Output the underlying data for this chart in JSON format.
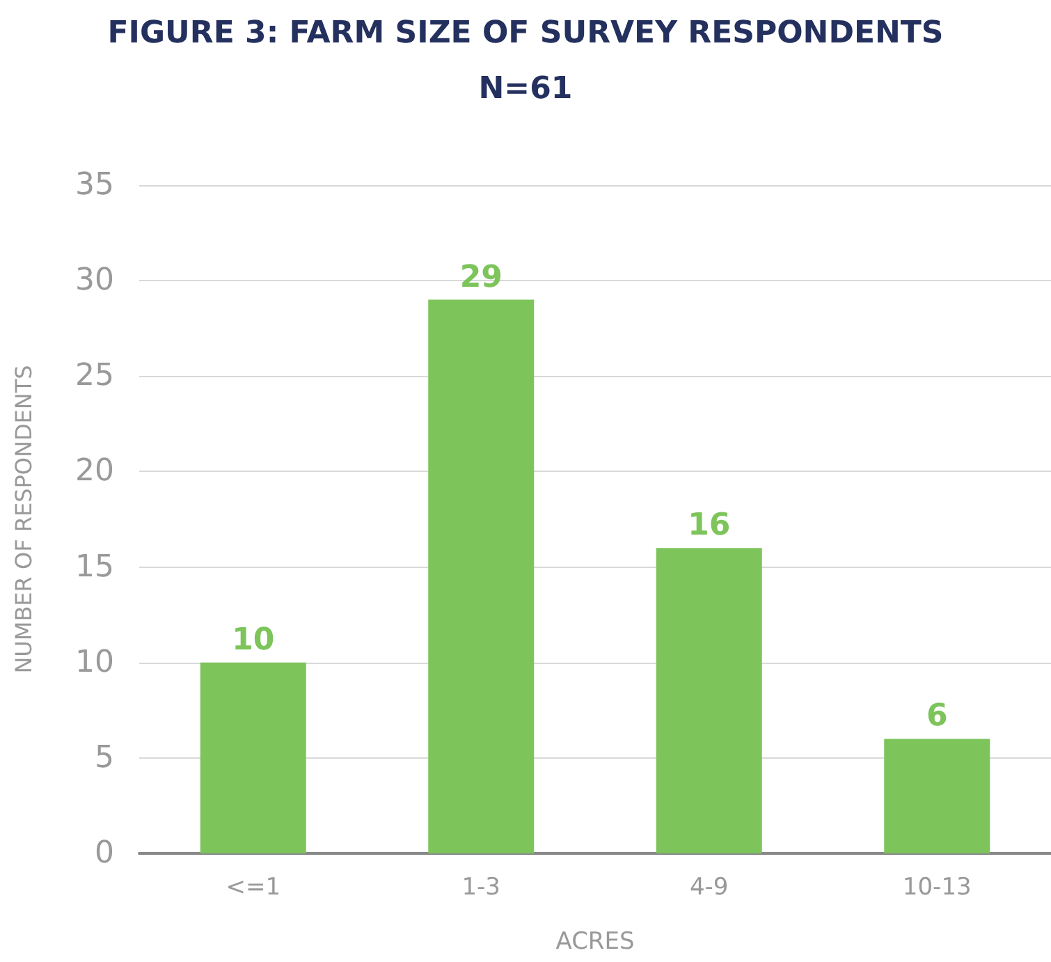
{
  "chart_data": {
    "type": "bar",
    "title": "FIGURE 3: FARM SIZE OF SURVEY RESPONDENTS",
    "subtitle": "N=61",
    "xlabel": "ACRES",
    "ylabel": "NUMBER OF RESPONDENTS",
    "categories": [
      "<=1",
      "1-3",
      "4-9",
      "10-13"
    ],
    "values": [
      10,
      29,
      16,
      6
    ],
    "color": "#7dc45b",
    "ylim": [
      0,
      35
    ],
    "yticks": [
      0,
      5,
      10,
      15,
      20,
      25,
      30,
      35
    ],
    "grid": "y",
    "data_labels": true
  }
}
